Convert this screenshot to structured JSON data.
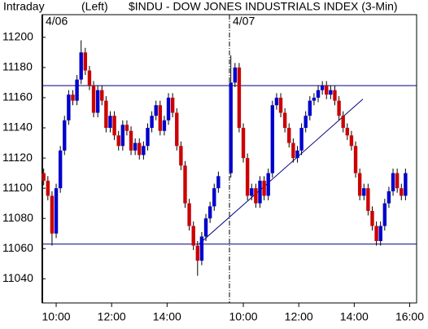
{
  "chart_data": {
    "type": "candlestick",
    "title": "$INDU - DOW JONES INDUSTRIALS INDEX  (3-Min)",
    "period": "Intraday",
    "axis_side": "(Left)",
    "day_labels": [
      {
        "value": 0,
        "label": "4/06"
      },
      {
        "value": 6.75,
        "label": "4/07"
      }
    ],
    "xlim": [
      0,
      13.5
    ],
    "xticks": [
      {
        "value": 0.5,
        "label": "10:00"
      },
      {
        "value": 2.5,
        "label": "12:00"
      },
      {
        "value": 4.5,
        "label": "14:00"
      },
      {
        "value": 7.25,
        "label": "10:00"
      },
      {
        "value": 9.25,
        "label": "12:00"
      },
      {
        "value": 11.25,
        "label": "14:00"
      },
      {
        "value": 13.25,
        "label": "16:00"
      }
    ],
    "ylim": [
      11024,
      11215
    ],
    "yticks": [
      11040,
      11060,
      11080,
      11100,
      11120,
      11140,
      11160,
      11180,
      11200
    ],
    "up_color": "#0000cc",
    "down_color": "#cc0000",
    "line_color": "#000080",
    "hlines": [
      11168,
      11063
    ],
    "trendline": {
      "x": [
        5.65,
        11.56
      ],
      "y": [
        11063,
        11159
      ]
    },
    "x": [
      0.05,
      0.2,
      0.35,
      0.5,
      0.65,
      0.8,
      0.95,
      1.1,
      1.25,
      1.4,
      1.55,
      1.7,
      1.85,
      2.0,
      2.15,
      2.3,
      2.45,
      2.6,
      2.75,
      2.9,
      3.05,
      3.2,
      3.35,
      3.5,
      3.65,
      3.8,
      3.95,
      4.1,
      4.25,
      4.4,
      4.55,
      4.7,
      4.85,
      5.0,
      5.15,
      5.3,
      5.45,
      5.6,
      5.75,
      5.9,
      6.05,
      6.2,
      6.35,
      6.8,
      6.95,
      7.1,
      7.25,
      7.4,
      7.55,
      7.7,
      7.85,
      8.0,
      8.15,
      8.3,
      8.45,
      8.6,
      8.75,
      8.9,
      9.05,
      9.2,
      9.35,
      9.5,
      9.65,
      9.8,
      9.95,
      10.1,
      10.25,
      10.4,
      10.55,
      10.7,
      10.85,
      11.0,
      11.15,
      11.3,
      11.45,
      11.6,
      11.75,
      11.9,
      12.05,
      12.2,
      12.35,
      12.5,
      12.65,
      12.8,
      12.95,
      13.1
    ],
    "open": [
      11110,
      11105,
      11095,
      11070,
      11100,
      11125,
      11145,
      11162,
      11158,
      11172,
      11190,
      11178,
      11168,
      11150,
      11165,
      11158,
      11140,
      11148,
      11135,
      11128,
      11142,
      11138,
      11125,
      11130,
      11122,
      11128,
      11140,
      11148,
      11155,
      11138,
      11145,
      11160,
      11150,
      11128,
      11115,
      11090,
      11075,
      11062,
      11052,
      11068,
      11080,
      11088,
      11100,
      11110,
      11170,
      11180,
      11140,
      11120,
      11095,
      11100,
      11090,
      11105,
      11095,
      11110,
      11155,
      11160,
      11150,
      11140,
      11130,
      11120,
      11125,
      11140,
      11148,
      11158,
      11160,
      11165,
      11168,
      11162,
      11165,
      11158,
      11148,
      11140,
      11135,
      11128,
      11110,
      11095,
      11100,
      11085,
      11075,
      11065,
      11075,
      11090,
      11098,
      11110,
      11100,
      11095
    ],
    "high": [
      11113,
      11108,
      11098,
      11103,
      11128,
      11148,
      11165,
      11165,
      11175,
      11198,
      11193,
      11181,
      11171,
      11168,
      11168,
      11161,
      11151,
      11151,
      11138,
      11145,
      11145,
      11141,
      11133,
      11133,
      11131,
      11143,
      11151,
      11158,
      11158,
      11148,
      11163,
      11163,
      11153,
      11131,
      11118,
      11093,
      11078,
      11065,
      11071,
      11083,
      11091,
      11103,
      11111,
      11188,
      11183,
      11183,
      11143,
      11123,
      11103,
      11103,
      11108,
      11108,
      11113,
      11158,
      11163,
      11163,
      11153,
      11143,
      11133,
      11128,
      11143,
      11151,
      11161,
      11163,
      11168,
      11171,
      11171,
      11168,
      11168,
      11161,
      11151,
      11143,
      11138,
      11131,
      11113,
      11103,
      11103,
      11088,
      11078,
      11078,
      11093,
      11101,
      11113,
      11113,
      11103,
      11113
    ],
    "low": [
      11102,
      11092,
      11062,
      11067,
      11097,
      11122,
      11142,
      11155,
      11155,
      11169,
      11175,
      11165,
      11147,
      11147,
      11155,
      11137,
      11137,
      11132,
      11125,
      11125,
      11135,
      11122,
      11122,
      11119,
      11119,
      11125,
      11137,
      11145,
      11135,
      11135,
      11142,
      11147,
      11125,
      11112,
      11087,
      11072,
      11059,
      11042,
      11049,
      11065,
      11077,
      11085,
      11097,
      11107,
      11167,
      11137,
      11117,
      11092,
      11092,
      11087,
      11087,
      11092,
      11092,
      11107,
      11152,
      11147,
      11137,
      11127,
      11117,
      11117,
      11122,
      11137,
      11145,
      11155,
      11157,
      11162,
      11159,
      11159,
      11155,
      11145,
      11137,
      11132,
      11125,
      11107,
      11092,
      11092,
      11082,
      11072,
      11062,
      11062,
      11072,
      11087,
      11095,
      11097,
      11092,
      11092
    ],
    "close": [
      11105,
      11095,
      11070,
      11100,
      11125,
      11145,
      11162,
      11158,
      11172,
      11190,
      11178,
      11168,
      11150,
      11165,
      11158,
      11140,
      11148,
      11135,
      11128,
      11142,
      11138,
      11125,
      11130,
      11122,
      11128,
      11140,
      11148,
      11155,
      11138,
      11145,
      11160,
      11150,
      11128,
      11115,
      11090,
      11075,
      11062,
      11052,
      11068,
      11080,
      11088,
      11100,
      11108,
      11170,
      11180,
      11140,
      11120,
      11095,
      11100,
      11090,
      11105,
      11095,
      11110,
      11155,
      11160,
      11150,
      11140,
      11130,
      11120,
      11125,
      11140,
      11148,
      11158,
      11160,
      11165,
      11168,
      11162,
      11165,
      11158,
      11148,
      11140,
      11135,
      11128,
      11110,
      11095,
      11100,
      11085,
      11075,
      11065,
      11075,
      11090,
      11098,
      11110,
      11100,
      11095,
      11110
    ]
  }
}
